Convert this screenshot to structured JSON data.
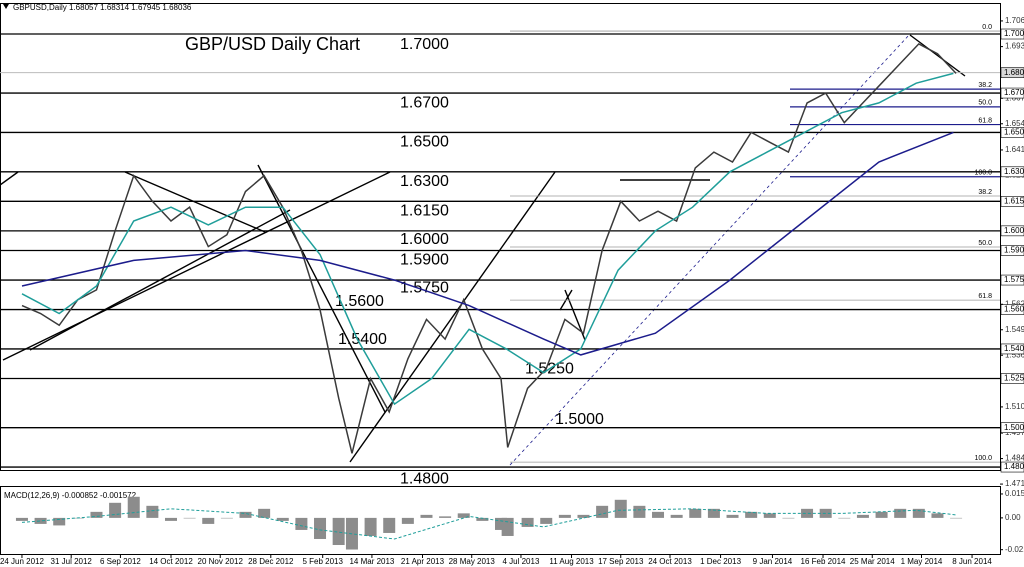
{
  "chart_data": [
    {
      "type": "line",
      "header": "GBPUSD,Daily  1.68057 1.68314 1.67945 1.68036",
      "title": "GBP/USD Daily Chart",
      "xlim": [
        -16.5,
        735
      ],
      "ylim": [
        1.4785,
        1.7122
      ],
      "yticks": [
        1.70665,
        {
          "value": 1.6936,
          "label": "1.69360"
        },
        1.66735,
        {
          "value": 1.6544,
          "label": "1.65440"
        },
        {
          "value": 1.6411,
          "label": "1.64110"
        },
        {
          "value": 1.6282,
          "label": "1.62820"
        },
        {
          "value": 1.5627,
          "label": "1.56270"
        },
        1.54975,
        {
          "value": 1.5368,
          "label": "1.53680"
        },
        1.51055,
        1.49725,
        {
          "value": 1.4843,
          "label": "1.48430"
        },
        1.47135
      ],
      "last_price": 1.68036,
      "levels": [
        {
          "value": 1.7,
          "label": "1.70000",
          "annotation": "1.7000"
        },
        {
          "value": 1.67,
          "label": "1.67000",
          "annotation": "1.6700"
        },
        {
          "value": 1.65,
          "label": "1.65000",
          "annotation": "1.6500"
        },
        {
          "value": 1.63,
          "label": "1.63000",
          "annotation": "1.6300"
        },
        {
          "value": 1.615,
          "label": "1.61500",
          "annotation": "1.6150"
        },
        {
          "value": 1.6,
          "label": "1.60000",
          "annotation": "1.6000"
        },
        {
          "value": 1.59,
          "label": "1.59000",
          "annotation": "1.5900"
        },
        {
          "value": 1.575,
          "label": "1.57500",
          "annotation": "1.5750"
        },
        {
          "value": 1.56,
          "label": "1.56000",
          "annotation": "1.5600"
        },
        {
          "value": 1.54,
          "label": "1.54000",
          "annotation": "1.5400"
        },
        {
          "value": 1.525,
          "label": "1.52500",
          "annotation": "1.5250"
        },
        {
          "value": 1.5,
          "label": "1.50000",
          "annotation": "1.5000"
        },
        {
          "value": 1.48,
          "label": "1.48000",
          "annotation": "1.4800"
        }
      ],
      "fibonacci": [
        [
          {
            "ratio": "38.2",
            "price": 1.672
          },
          {
            "ratio": "50.0",
            "price": 1.663
          },
          {
            "ratio": "61.8",
            "price": 1.654
          },
          {
            "ratio": "100.0",
            "price": 1.6275
          }
        ],
        [
          {
            "ratio": "0.0",
            "price": 1.7015
          },
          {
            "ratio": "38.2",
            "price": 1.6177
          },
          {
            "ratio": "50.0",
            "price": 1.5918
          },
          {
            "ratio": "61.8",
            "price": 1.5648
          },
          {
            "ratio": "100.0",
            "price": 1.4825
          }
        ]
      ],
      "series": [
        {
          "color": "#3a3a3a",
          "x": [
            0,
            14,
            28,
            42,
            56,
            70,
            84,
            98,
            112,
            126,
            140,
            154,
            168,
            182,
            196,
            210,
            224,
            238,
            248,
            262,
            276,
            290,
            304,
            318,
            332,
            346,
            360,
            365,
            380,
            394,
            408,
            422,
            436,
            450,
            464,
            478,
            492,
            506,
            520,
            534,
            548,
            562,
            576,
            590,
            604,
            618,
            632,
            646,
            660,
            674,
            688,
            702
          ],
          "values": [
            1.562,
            1.558,
            1.552,
            1.565,
            1.57,
            1.6,
            1.628,
            1.615,
            1.605,
            1.612,
            1.592,
            1.598,
            1.62,
            1.628,
            1.612,
            1.59,
            1.56,
            1.515,
            1.487,
            1.525,
            1.508,
            1.535,
            1.555,
            1.545,
            1.565,
            1.54,
            1.525,
            1.49,
            1.52,
            1.53,
            1.555,
            1.548,
            1.59,
            1.615,
            1.605,
            1.61,
            1.605,
            1.632,
            1.64,
            1.635,
            1.65,
            1.645,
            1.64,
            1.665,
            1.67,
            1.655,
            1.665,
            1.675,
            1.685,
            1.695,
            1.69,
            1.68
          ]
        },
        {
          "color": "#1f9e9a",
          "x": [
            0,
            28,
            56,
            84,
            112,
            140,
            168,
            196,
            224,
            252,
            280,
            308,
            336,
            364,
            392,
            420,
            448,
            476,
            504,
            532,
            560,
            588,
            616,
            644,
            672,
            700
          ],
          "values": [
            1.568,
            1.558,
            1.572,
            1.605,
            1.612,
            1.603,
            1.612,
            1.612,
            1.588,
            1.545,
            1.512,
            1.525,
            1.55,
            1.54,
            1.528,
            1.54,
            1.58,
            1.6,
            1.612,
            1.63,
            1.64,
            1.65,
            1.66,
            1.665,
            1.675,
            1.68
          ]
        },
        {
          "color": "#1c1c8c",
          "x": [
            0,
            84,
            168,
            224,
            280,
            336,
            392,
            420,
            476,
            532,
            588,
            644,
            700
          ],
          "values": [
            1.572,
            1.585,
            1.59,
            1.585,
            1.575,
            1.562,
            1.545,
            1.537,
            1.548,
            1.575,
            1.605,
            1.635,
            1.65
          ]
        }
      ]
    },
    {
      "type": "bar",
      "title": "MACD(12,26,9) -0.000852 -0.001572",
      "xlim": [
        -16.5,
        735
      ],
      "ylim": [
        -0.0233,
        0.0185
      ],
      "yticks": [
        0.015872,
        {
          "value": 0,
          "label": "0.00"
        },
        -0.021094
      ],
      "xticks": [
        {
          "value": 0,
          "label": "24 Jun 2012"
        },
        {
          "value": 37,
          "label": "31 Jul 2012"
        },
        {
          "value": 74,
          "label": "6 Sep 2012"
        },
        {
          "value": 112,
          "label": "14 Oct 2012"
        },
        {
          "value": 149,
          "label": "20 Nov 2012"
        },
        {
          "value": 187,
          "label": "28 Dec 2012"
        },
        {
          "value": 226,
          "label": "5 Feb 2013"
        },
        {
          "value": 263,
          "label": "14 Mar 2013"
        },
        {
          "value": 301,
          "label": "21 Apr 2013"
        },
        {
          "value": 338,
          "label": "28 May 2013"
        },
        {
          "value": 375,
          "label": "4 Jul 2013"
        },
        {
          "value": 413,
          "label": "11 Aug 2013"
        },
        {
          "value": 450,
          "label": "17 Sep 2013"
        },
        {
          "value": 487,
          "label": "24 Oct 2013"
        },
        {
          "value": 525,
          "label": "1 Dec 2013"
        },
        {
          "value": 564,
          "label": "9 Jan 2014"
        },
        {
          "value": 602,
          "label": "16 Feb 2014"
        },
        {
          "value": 639,
          "label": "25 Mar 2014"
        },
        {
          "value": 676,
          "label": "1 May 2014"
        },
        {
          "value": 714,
          "label": "8 Jun 2014"
        }
      ],
      "series": [
        {
          "type": "bar",
          "color": "#8c8c8c",
          "x": [
            0,
            14,
            28,
            42,
            56,
            70,
            84,
            98,
            112,
            126,
            140,
            154,
            168,
            182,
            196,
            210,
            224,
            238,
            248,
            262,
            276,
            290,
            304,
            318,
            332,
            346,
            360,
            365,
            380,
            394,
            408,
            422,
            436,
            450,
            464,
            478,
            492,
            506,
            520,
            534,
            548,
            562,
            576,
            590,
            604,
            618,
            632,
            646,
            660,
            674,
            688,
            702
          ],
          "values": [
            -0.002,
            -0.004,
            -0.005,
            0,
            0.004,
            0.01,
            0.014,
            0.008,
            -0.002,
            0,
            -0.004,
            0,
            0.004,
            0.006,
            -0.002,
            -0.008,
            -0.014,
            -0.018,
            -0.021,
            -0.012,
            -0.01,
            -0.004,
            0.002,
            0.001,
            0.003,
            -0.002,
            -0.008,
            -0.012,
            -0.006,
            -0.004,
            0.002,
            0.002,
            0.008,
            0.012,
            0.008,
            0.004,
            0.002,
            0.006,
            0.006,
            0.002,
            0.004,
            0.003,
            0,
            0.006,
            0.006,
            0,
            0.002,
            0.004,
            0.006,
            0.006,
            0.003,
            0
          ]
        },
        {
          "type": "line",
          "color": "#1f9e9a",
          "dash": true,
          "x": [
            0,
            56,
            112,
            168,
            224,
            280,
            336,
            392,
            448,
            504,
            560,
            616,
            672,
            702
          ],
          "values": [
            -0.003,
            0.001,
            0.006,
            0.003,
            -0.008,
            -0.014,
            0.001,
            -0.006,
            0.005,
            0.006,
            0.003,
            0.003,
            0.005,
            0.002
          ]
        }
      ]
    }
  ]
}
